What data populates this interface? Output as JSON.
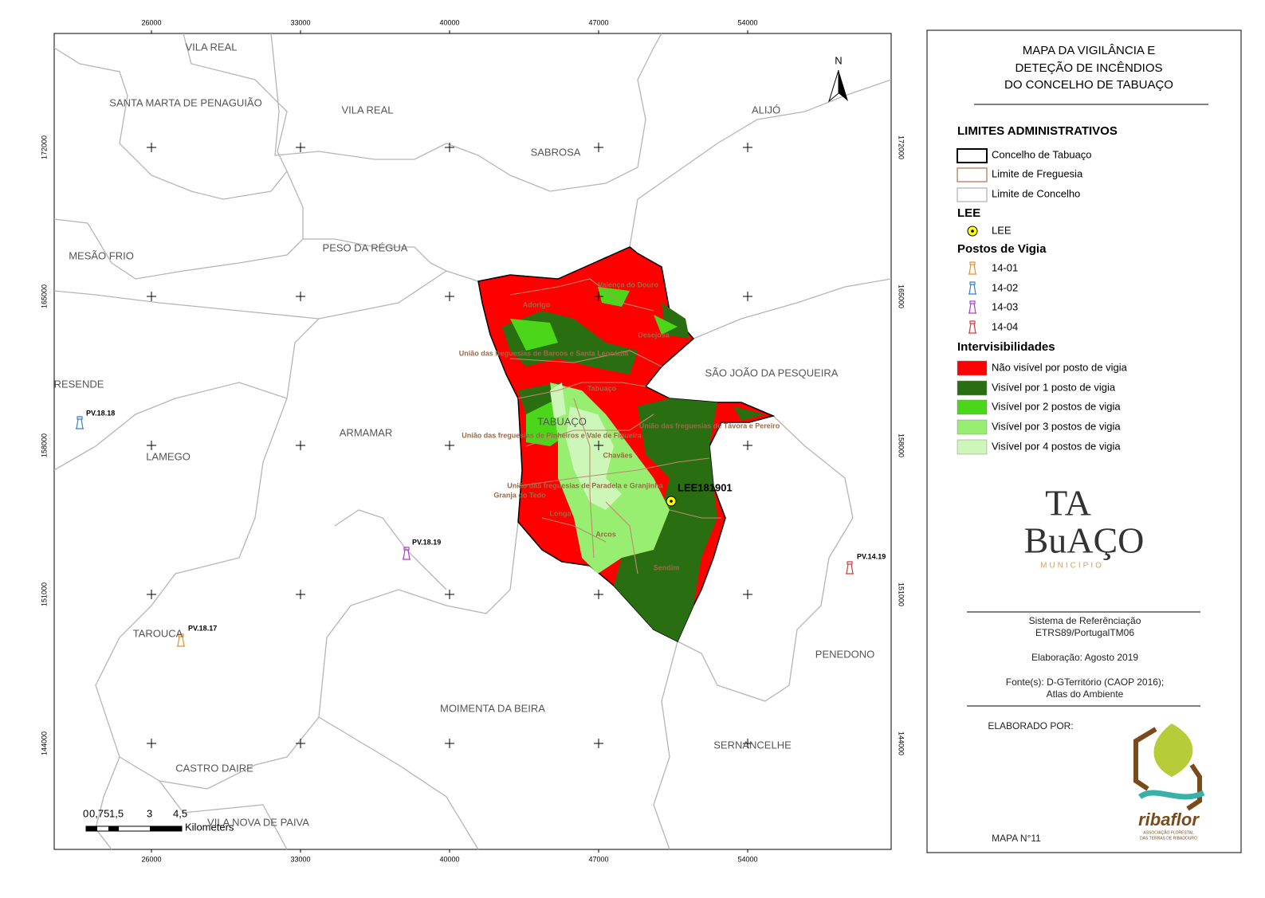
{
  "map": {
    "grid": {
      "x": [
        26000,
        33000,
        40000,
        47000,
        54000
      ],
      "y": [
        172000,
        165000,
        158000,
        151000,
        144000
      ]
    },
    "municipalities": [
      "VILA REAL",
      "SANTA MARTA DE PENAGUIÃO",
      "VILA REAL",
      "SABROSA",
      "ALIJÓ",
      "MESÃO FRIO",
      "PESO DA RÉGUA",
      "SÃO JOÃO DA PESQUEIRA",
      "RESENDE",
      "ARMAMAR",
      "LAMEGO",
      "TABUAÇO",
      "TAROUCA",
      "PENEDONO",
      "MOIMENTA DA BEIRA",
      "SERNANCELHE",
      "CASTRO DAIRE",
      "VILA NOVA DE PAIVA"
    ],
    "parishes": [
      "Valença do Douro",
      "Adorigo",
      "Desejosa",
      "União das freguesias de Barcos e Santa Leocádia",
      "Tabuaço",
      "União das freguesias de Távora e Pereiro",
      "União das freguesias de Pinheiros e Vale de Figueira",
      "Chavães",
      "União das freguesias de Paradela e Granjinha",
      "Granja do Tedo",
      "Longa",
      "Arcos",
      "Sendim"
    ],
    "posts": [
      "PV.18.18",
      "PV.18.19",
      "PV.18.17",
      "PV.14.19"
    ],
    "lee": "LEE181901",
    "north": "N",
    "scale": {
      "labels": [
        "0",
        "0,75",
        "1,5",
        "3",
        "4,5"
      ],
      "unit": "Kilometers"
    }
  },
  "legend": {
    "title": [
      "MAPA DA VIGILÂNCIA E",
      "DETEÇÃO DE INCÊNDIOS",
      "DO CONCELHO DE TABUAÇO"
    ],
    "admin": {
      "heading": "LIMITES ADMINISTRATIVOS",
      "items": [
        {
          "label": "Concelho de Tabuaço",
          "color": "#000000"
        },
        {
          "label": "Limite de Freguesia",
          "color": "#c08a72"
        },
        {
          "label": "Limite de Concelho",
          "color": "#bdbdbd"
        }
      ]
    },
    "lee": {
      "heading": "LEE",
      "items": [
        {
          "label": "LEE",
          "color": "#ffff00"
        }
      ]
    },
    "posts": {
      "heading": "Postos de Vigia",
      "items": [
        {
          "label": "14-01",
          "color": "#e8902c"
        },
        {
          "label": "14-02",
          "color": "#3c7fd0"
        },
        {
          "label": "14-03",
          "color": "#b03cc8"
        },
        {
          "label": "14-04",
          "color": "#d23c3c"
        }
      ]
    },
    "visibility": {
      "heading": "Intervisibilidades",
      "items": [
        {
          "label": "Não visível por posto de vigia",
          "color": "#ff0000"
        },
        {
          "label": "Visível por 1 posto de vigia",
          "color": "#2a6e12"
        },
        {
          "label": "Visível por 2 postos de vigia",
          "color": "#4cd61a"
        },
        {
          "label": "Visível por 3 postos de vigia",
          "color": "#98ee70"
        },
        {
          "label": "Visível por 4 postos de vigia",
          "color": "#ccf7b8"
        }
      ]
    }
  },
  "logos": {
    "municipality": [
      "TA",
      "BuAÇO",
      "MUNICIPIO"
    ],
    "association": [
      "ribaflor",
      "ASSOCIAÇÃO FLORESTAL",
      "DAS TERRAS DE RIBADOURO"
    ]
  },
  "footer": {
    "reference": [
      "Sistema de Referênciação",
      "ETRS89/PortugalTM06"
    ],
    "date": "Elaboração: Agosto 2019",
    "source": [
      "Fonte(s): D-GTerritório (CAOP 2016);",
      "Atlas do Ambiente"
    ],
    "author": "ELABORADO POR:",
    "map_number": "MAPA N°11"
  }
}
